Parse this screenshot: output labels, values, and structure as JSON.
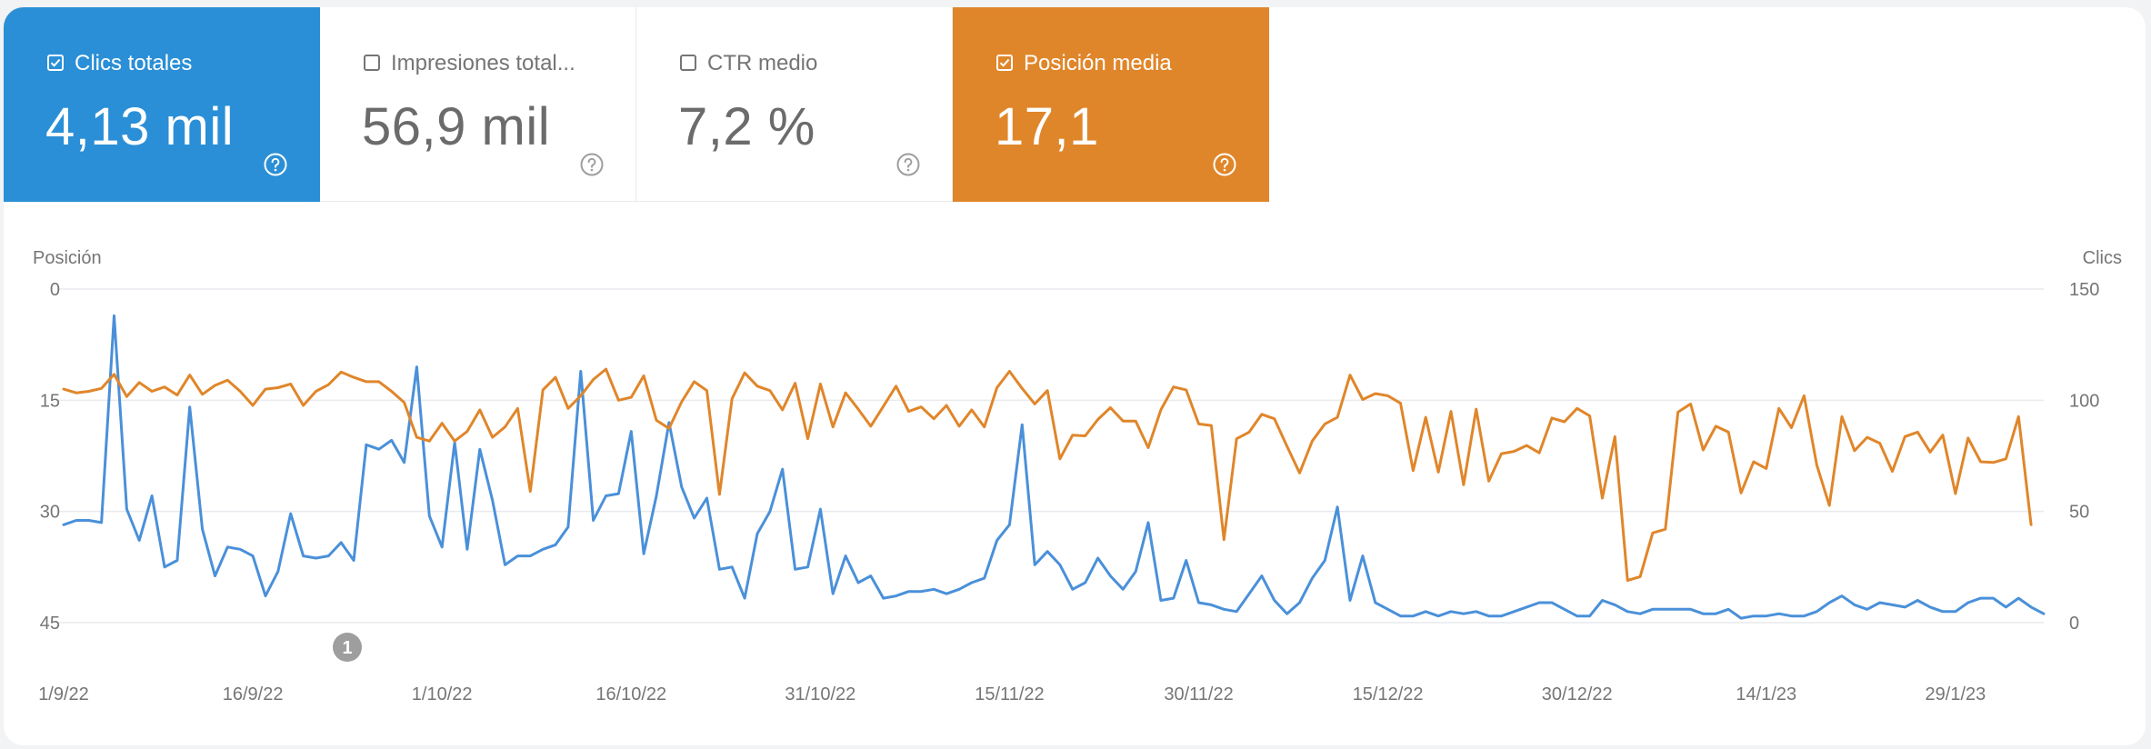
{
  "metrics": [
    {
      "label": "Clics totales",
      "value": "4,13 mil",
      "checked": true,
      "color": "#2a8fd6"
    },
    {
      "label": "Impresiones total...",
      "value": "56,9 mil",
      "checked": false,
      "color": "#ffffff"
    },
    {
      "label": "CTR medio",
      "value": "7,2 %",
      "checked": false,
      "color": "#ffffff"
    },
    {
      "label": "Posición media",
      "value": "17,1",
      "checked": true,
      "color": "#e0862a"
    }
  ],
  "annotation": {
    "label": "1"
  },
  "chart_data": {
    "type": "line",
    "left_axis": {
      "label": "Posición",
      "ticks": [
        "0",
        "15",
        "30",
        "45"
      ],
      "range": [
        0,
        45
      ],
      "reversed": true
    },
    "right_axis": {
      "label": "Clics",
      "ticks": [
        "150",
        "100",
        "50",
        "0"
      ],
      "range": [
        0,
        150
      ]
    },
    "x_tick_labels": [
      "1/9/22",
      "16/9/22",
      "1/10/22",
      "16/10/22",
      "31/10/22",
      "15/11/22",
      "30/11/22",
      "15/12/22",
      "30/12/22",
      "14/1/23",
      "29/1/23"
    ],
    "x_range": [
      "1/9/22",
      "10/2/23"
    ],
    "grid": true,
    "series": [
      {
        "name": "Clics",
        "axis": "right",
        "color": "#4a90d9",
        "values": [
          44,
          46,
          46,
          45,
          138,
          51,
          37,
          57,
          25,
          28,
          97,
          42,
          21,
          34,
          33,
          30,
          12,
          23,
          49,
          30,
          29,
          30,
          36,
          28,
          80,
          78,
          82,
          72,
          115,
          48,
          34,
          81,
          33,
          78,
          55,
          26,
          30,
          30,
          33,
          35,
          43,
          113,
          46,
          57,
          58,
          86,
          31,
          57,
          90,
          61,
          47,
          56,
          24,
          25,
          11,
          40,
          50,
          69,
          24,
          25,
          51,
          13,
          30,
          18,
          21,
          11,
          12,
          14,
          14,
          15,
          13,
          15,
          18,
          20,
          37,
          44,
          89,
          26,
          32,
          26,
          15,
          18,
          29,
          21,
          15,
          23,
          45,
          10,
          11,
          28,
          9,
          8,
          6,
          5,
          13,
          21,
          10,
          4,
          9,
          20,
          28,
          52,
          10,
          30,
          9,
          6,
          3,
          3,
          5,
          3,
          5,
          4,
          5,
          3,
          3,
          5,
          7,
          9,
          9,
          6,
          3,
          3,
          10,
          8,
          5,
          4,
          6,
          6,
          6,
          6,
          4,
          4,
          6,
          2,
          3,
          3,
          4,
          3,
          3,
          5,
          9,
          12,
          8,
          6,
          9,
          8,
          7,
          10,
          7,
          5,
          5,
          9,
          11,
          11,
          7,
          11,
          7,
          4
        ]
      },
      {
        "name": "Posición",
        "axis": "left",
        "values": [
          13.5,
          14,
          13.8,
          13.4,
          11.5,
          14.5,
          12.6,
          13.8,
          13.2,
          14.3,
          11.6,
          14.2,
          13,
          12.3,
          13.8,
          15.7,
          13.5,
          13.3,
          12.8,
          15.7,
          13.8,
          12.9,
          11.2,
          11.9,
          12.5,
          12.5,
          13.8,
          15.3,
          20,
          20.5,
          18.1,
          20.5,
          19.2,
          16.3,
          20,
          18.6,
          16.1,
          27.3,
          13.6,
          11.9,
          16.1,
          14.4,
          12.2,
          10.8,
          15,
          14.6,
          11.7,
          17.7,
          18.8,
          15.2,
          12.5,
          13.7,
          27.7,
          14.8,
          11.3,
          13.1,
          13.7,
          16.3,
          12.7,
          20.2,
          12.8,
          18.6,
          14,
          16.2,
          18.5,
          15.8,
          13.1,
          16.5,
          15.9,
          17.5,
          15.7,
          18.5,
          16.3,
          18.6,
          13.3,
          11.1,
          13.4,
          15.5,
          13.7,
          22.9,
          19.7,
          19.8,
          17.6,
          16,
          17.8,
          17.8,
          21.4,
          16.3,
          13.2,
          13.6,
          18.2,
          18.4,
          33.8,
          20.2,
          19.3,
          16.9,
          17.5,
          21.2,
          24.8,
          20.5,
          18.2,
          17.3,
          11.6,
          14.9,
          14.1,
          14.4,
          15.4,
          24.5,
          17.3,
          24.7,
          16.5,
          26.4,
          16.2,
          25.9,
          22.2,
          21.9,
          21.1,
          22.1,
          17.4,
          17.9,
          16.1,
          17.1,
          28.2,
          19.9,
          39.3,
          38.8,
          32.9,
          32.4,
          16.6,
          15.5,
          21.7,
          18.5,
          19.3,
          27.5,
          23.3,
          24.2,
          16.1,
          18.7,
          14.4,
          23.7,
          29.2,
          17.2,
          21.8,
          20,
          20.8,
          24.6,
          19.9,
          19.3,
          22,
          19.7,
          27.6,
          20.1,
          23.3,
          23.4,
          22.9,
          17.2,
          31.8
        ],
        "color": "#e0862a"
      }
    ]
  }
}
